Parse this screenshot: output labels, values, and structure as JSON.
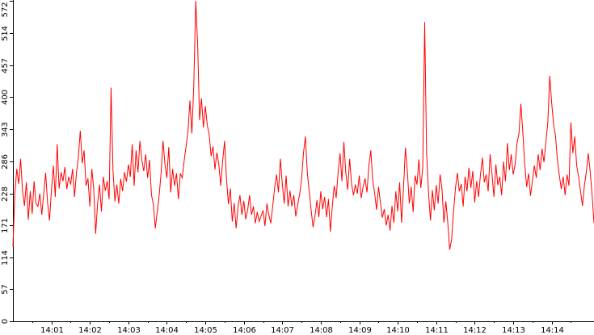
{
  "chart_data": {
    "type": "line",
    "title": "",
    "xlabel": "",
    "ylabel": "",
    "ylim": [
      0,
      572
    ],
    "xlim_minutes": [
      0.0,
      15.1
    ],
    "grid": false,
    "legend": "none",
    "line_color": "#ff0000",
    "y_ticks": [
      0,
      57,
      114,
      171,
      228,
      286,
      343,
      400,
      457,
      514,
      572
    ],
    "y_tick_labels": [
      "0",
      "57",
      "114",
      "171",
      "228",
      "286",
      "343",
      "400",
      "457",
      "514",
      "572"
    ],
    "x_ticks_minutes": [
      1,
      2,
      3,
      4,
      5,
      6,
      7,
      8,
      9,
      10,
      11,
      12,
      13,
      14
    ],
    "x_tick_labels": [
      "14:01",
      "14:02",
      "14:03",
      "14:04",
      "14:05",
      "14:06",
      "14:07",
      "14:08",
      "14:09",
      "14:10",
      "14:11",
      "14:12",
      "14:13",
      "14:14"
    ],
    "series": [
      {
        "values": [
          [
            0.0,
            133
          ],
          [
            0.05,
            228
          ],
          [
            0.1,
            272
          ],
          [
            0.15,
            245
          ],
          [
            0.2,
            290
          ],
          [
            0.25,
            232
          ],
          [
            0.3,
            206
          ],
          [
            0.35,
            248
          ],
          [
            0.4,
            181
          ],
          [
            0.45,
            232
          ],
          [
            0.5,
            192
          ],
          [
            0.55,
            250
          ],
          [
            0.6,
            210
          ],
          [
            0.65,
            205
          ],
          [
            0.7,
            228
          ],
          [
            0.75,
            190
          ],
          [
            0.8,
            228
          ],
          [
            0.85,
            265
          ],
          [
            0.9,
            212
          ],
          [
            0.95,
            180
          ],
          [
            1.0,
            233
          ],
          [
            1.05,
            278
          ],
          [
            1.1,
            222
          ],
          [
            1.15,
            316
          ],
          [
            1.2,
            237
          ],
          [
            1.25,
            266
          ],
          [
            1.3,
            250
          ],
          [
            1.35,
            275
          ],
          [
            1.4,
            236
          ],
          [
            1.45,
            258
          ],
          [
            1.5,
            244
          ],
          [
            1.55,
            272
          ],
          [
            1.6,
            222
          ],
          [
            1.65,
            264
          ],
          [
            1.7,
            293
          ],
          [
            1.75,
            340
          ],
          [
            1.8,
            282
          ],
          [
            1.85,
            305
          ],
          [
            1.9,
            242
          ],
          [
            1.95,
            255
          ],
          [
            2.0,
            205
          ],
          [
            2.05,
            272
          ],
          [
            2.1,
            236
          ],
          [
            2.15,
            156
          ],
          [
            2.2,
            210
          ],
          [
            2.25,
            244
          ],
          [
            2.3,
            196
          ],
          [
            2.35,
            258
          ],
          [
            2.4,
            233
          ],
          [
            2.45,
            250
          ],
          [
            2.5,
            218
          ],
          [
            2.55,
            417
          ],
          [
            2.6,
            270
          ],
          [
            2.65,
            214
          ],
          [
            2.7,
            244
          ],
          [
            2.75,
            210
          ],
          [
            2.8,
            254
          ],
          [
            2.85,
            232
          ],
          [
            2.9,
            266
          ],
          [
            2.95,
            249
          ],
          [
            3.0,
            280
          ],
          [
            3.05,
            258
          ],
          [
            3.1,
            316
          ],
          [
            3.15,
            242
          ],
          [
            3.2,
            305
          ],
          [
            3.25,
            266
          ],
          [
            3.3,
            322
          ],
          [
            3.35,
            288
          ],
          [
            3.4,
            268
          ],
          [
            3.45,
            298
          ],
          [
            3.5,
            256
          ],
          [
            3.55,
            288
          ],
          [
            3.6,
            226
          ],
          [
            3.65,
            208
          ],
          [
            3.7,
            166
          ],
          [
            3.75,
            195
          ],
          [
            3.8,
            225
          ],
          [
            3.85,
            264
          ],
          [
            3.9,
            322
          ],
          [
            3.95,
            281
          ],
          [
            4.0,
            256
          ],
          [
            4.05,
            311
          ],
          [
            4.1,
            230
          ],
          [
            4.15,
            272
          ],
          [
            4.2,
            242
          ],
          [
            4.25,
            264
          ],
          [
            4.3,
            218
          ],
          [
            4.35,
            264
          ],
          [
            4.4,
            256
          ],
          [
            4.45,
            287
          ],
          [
            4.5,
            312
          ],
          [
            4.55,
            340
          ],
          [
            4.6,
            394
          ],
          [
            4.65,
            335
          ],
          [
            4.7,
            421
          ],
          [
            4.75,
            572
          ],
          [
            4.8,
            495
          ],
          [
            4.85,
            359
          ],
          [
            4.9,
            398
          ],
          [
            4.95,
            346
          ],
          [
            5.0,
            384
          ],
          [
            5.05,
            350
          ],
          [
            5.1,
            333
          ],
          [
            5.15,
            295
          ],
          [
            5.2,
            312
          ],
          [
            5.25,
            271
          ],
          [
            5.3,
            301
          ],
          [
            5.35,
            280
          ],
          [
            5.4,
            242
          ],
          [
            5.45,
            286
          ],
          [
            5.5,
            322
          ],
          [
            5.55,
            254
          ],
          [
            5.6,
            209
          ],
          [
            5.65,
            237
          ],
          [
            5.7,
            178
          ],
          [
            5.75,
            211
          ],
          [
            5.8,
            166
          ],
          [
            5.85,
            205
          ],
          [
            5.9,
            225
          ],
          [
            5.95,
            190
          ],
          [
            6.0,
            215
          ],
          [
            6.05,
            182
          ],
          [
            6.1,
            199
          ],
          [
            6.15,
            225
          ],
          [
            6.2,
            190
          ],
          [
            6.25,
            205
          ],
          [
            6.3,
            175
          ],
          [
            6.35,
            195
          ],
          [
            6.4,
            178
          ],
          [
            6.45,
            188
          ],
          [
            6.5,
            198
          ],
          [
            6.55,
            170
          ],
          [
            6.6,
            210
          ],
          [
            6.65,
            190
          ],
          [
            6.7,
            175
          ],
          [
            6.75,
            205
          ],
          [
            6.8,
            238
          ],
          [
            6.85,
            262
          ],
          [
            6.9,
            230
          ],
          [
            6.95,
            290
          ],
          [
            7.0,
            245
          ],
          [
            7.05,
            210
          ],
          [
            7.1,
            260
          ],
          [
            7.15,
            205
          ],
          [
            7.2,
            233
          ],
          [
            7.25,
            205
          ],
          [
            7.3,
            225
          ],
          [
            7.35,
            187
          ],
          [
            7.4,
            208
          ],
          [
            7.45,
            227
          ],
          [
            7.5,
            252
          ],
          [
            7.55,
            300
          ],
          [
            7.6,
            330
          ],
          [
            7.65,
            265
          ],
          [
            7.7,
            232
          ],
          [
            7.75,
            198
          ],
          [
            7.8,
            168
          ],
          [
            7.85,
            188
          ],
          [
            7.9,
            216
          ],
          [
            7.95,
            186
          ],
          [
            8.0,
            232
          ],
          [
            8.05,
            200
          ],
          [
            8.1,
            222
          ],
          [
            8.15,
            186
          ],
          [
            8.2,
            218
          ],
          [
            8.25,
            160
          ],
          [
            8.3,
            206
          ],
          [
            8.35,
            242
          ],
          [
            8.4,
            220
          ],
          [
            8.45,
            265
          ],
          [
            8.5,
            300
          ],
          [
            8.55,
            250
          ],
          [
            8.6,
            320
          ],
          [
            8.65,
            265
          ],
          [
            8.7,
            235
          ],
          [
            8.75,
            290
          ],
          [
            8.8,
            245
          ],
          [
            8.85,
            225
          ],
          [
            8.9,
            244
          ],
          [
            8.95,
            228
          ],
          [
            9.0,
            260
          ],
          [
            9.05,
            220
          ],
          [
            9.1,
            240
          ],
          [
            9.15,
            255
          ],
          [
            9.2,
            230
          ],
          [
            9.25,
            278
          ],
          [
            9.3,
            305
          ],
          [
            9.35,
            252
          ],
          [
            9.4,
            228
          ],
          [
            9.45,
            199
          ],
          [
            9.5,
            240
          ],
          [
            9.55,
            212
          ],
          [
            9.6,
            185
          ],
          [
            9.65,
            200
          ],
          [
            9.7,
            171
          ],
          [
            9.75,
            190
          ],
          [
            9.8,
            162
          ],
          [
            9.85,
            206
          ],
          [
            9.9,
            176
          ],
          [
            9.95,
            232
          ],
          [
            10.0,
            196
          ],
          [
            10.05,
            248
          ],
          [
            10.1,
            176
          ],
          [
            10.15,
            238
          ],
          [
            10.2,
            310
          ],
          [
            10.25,
            268
          ],
          [
            10.3,
            210
          ],
          [
            10.35,
            240
          ],
          [
            10.4,
            195
          ],
          [
            10.45,
            260
          ],
          [
            10.5,
            244
          ],
          [
            10.55,
            289
          ],
          [
            10.6,
            238
          ],
          [
            10.65,
            274
          ],
          [
            10.7,
            534
          ],
          [
            10.75,
            300
          ],
          [
            10.8,
            230
          ],
          [
            10.85,
            180
          ],
          [
            10.9,
            234
          ],
          [
            10.95,
            198
          ],
          [
            11.0,
            243
          ],
          [
            11.05,
            210
          ],
          [
            11.1,
            262
          ],
          [
            11.15,
            236
          ],
          [
            11.2,
            176
          ],
          [
            11.25,
            214
          ],
          [
            11.3,
            176
          ],
          [
            11.35,
            128
          ],
          [
            11.4,
            146
          ],
          [
            11.45,
            196
          ],
          [
            11.5,
            238
          ],
          [
            11.55,
            265
          ],
          [
            11.6,
            232
          ],
          [
            11.65,
            245
          ],
          [
            11.7,
            205
          ],
          [
            11.75,
            258
          ],
          [
            11.8,
            232
          ],
          [
            11.85,
            274
          ],
          [
            11.9,
            238
          ],
          [
            11.95,
            268
          ],
          [
            12.0,
            212
          ],
          [
            12.05,
            250
          ],
          [
            12.1,
            222
          ],
          [
            12.15,
            262
          ],
          [
            12.2,
            292
          ],
          [
            12.25,
            248
          ],
          [
            12.3,
            262
          ],
          [
            12.35,
            232
          ],
          [
            12.4,
            298
          ],
          [
            12.45,
            262
          ],
          [
            12.5,
            222
          ],
          [
            12.55,
            280
          ],
          [
            12.6,
            243
          ],
          [
            12.65,
            258
          ],
          [
            12.7,
            225
          ],
          [
            12.75,
            285
          ],
          [
            12.8,
            250
          ],
          [
            12.85,
            318
          ],
          [
            12.9,
            270
          ],
          [
            12.95,
            298
          ],
          [
            13.0,
            262
          ],
          [
            13.05,
            280
          ],
          [
            13.1,
            318
          ],
          [
            13.15,
            335
          ],
          [
            13.2,
            388
          ],
          [
            13.25,
            338
          ],
          [
            13.3,
            280
          ],
          [
            13.35,
            240
          ],
          [
            13.4,
            264
          ],
          [
            13.45,
            224
          ],
          [
            13.5,
            250
          ],
          [
            13.55,
            278
          ],
          [
            13.6,
            256
          ],
          [
            13.65,
            298
          ],
          [
            13.7,
            270
          ],
          [
            13.75,
            308
          ],
          [
            13.8,
            284
          ],
          [
            13.85,
            320
          ],
          [
            13.9,
            355
          ],
          [
            13.95,
            438
          ],
          [
            14.0,
            390
          ],
          [
            14.05,
            352
          ],
          [
            14.1,
            330
          ],
          [
            14.15,
            288
          ],
          [
            14.2,
            260
          ],
          [
            14.25,
            236
          ],
          [
            14.3,
            258
          ],
          [
            14.35,
            225
          ],
          [
            14.4,
            262
          ],
          [
            14.45,
            242
          ],
          [
            14.5,
            355
          ],
          [
            14.55,
            300
          ],
          [
            14.6,
            330
          ],
          [
            14.65,
            278
          ],
          [
            14.7,
            258
          ],
          [
            14.75,
            232
          ],
          [
            14.8,
            206
          ],
          [
            14.85,
            242
          ],
          [
            14.9,
            266
          ],
          [
            14.95,
            300
          ],
          [
            15.0,
            268
          ],
          [
            15.05,
            226
          ],
          [
            15.1,
            175
          ]
        ]
      }
    ]
  }
}
